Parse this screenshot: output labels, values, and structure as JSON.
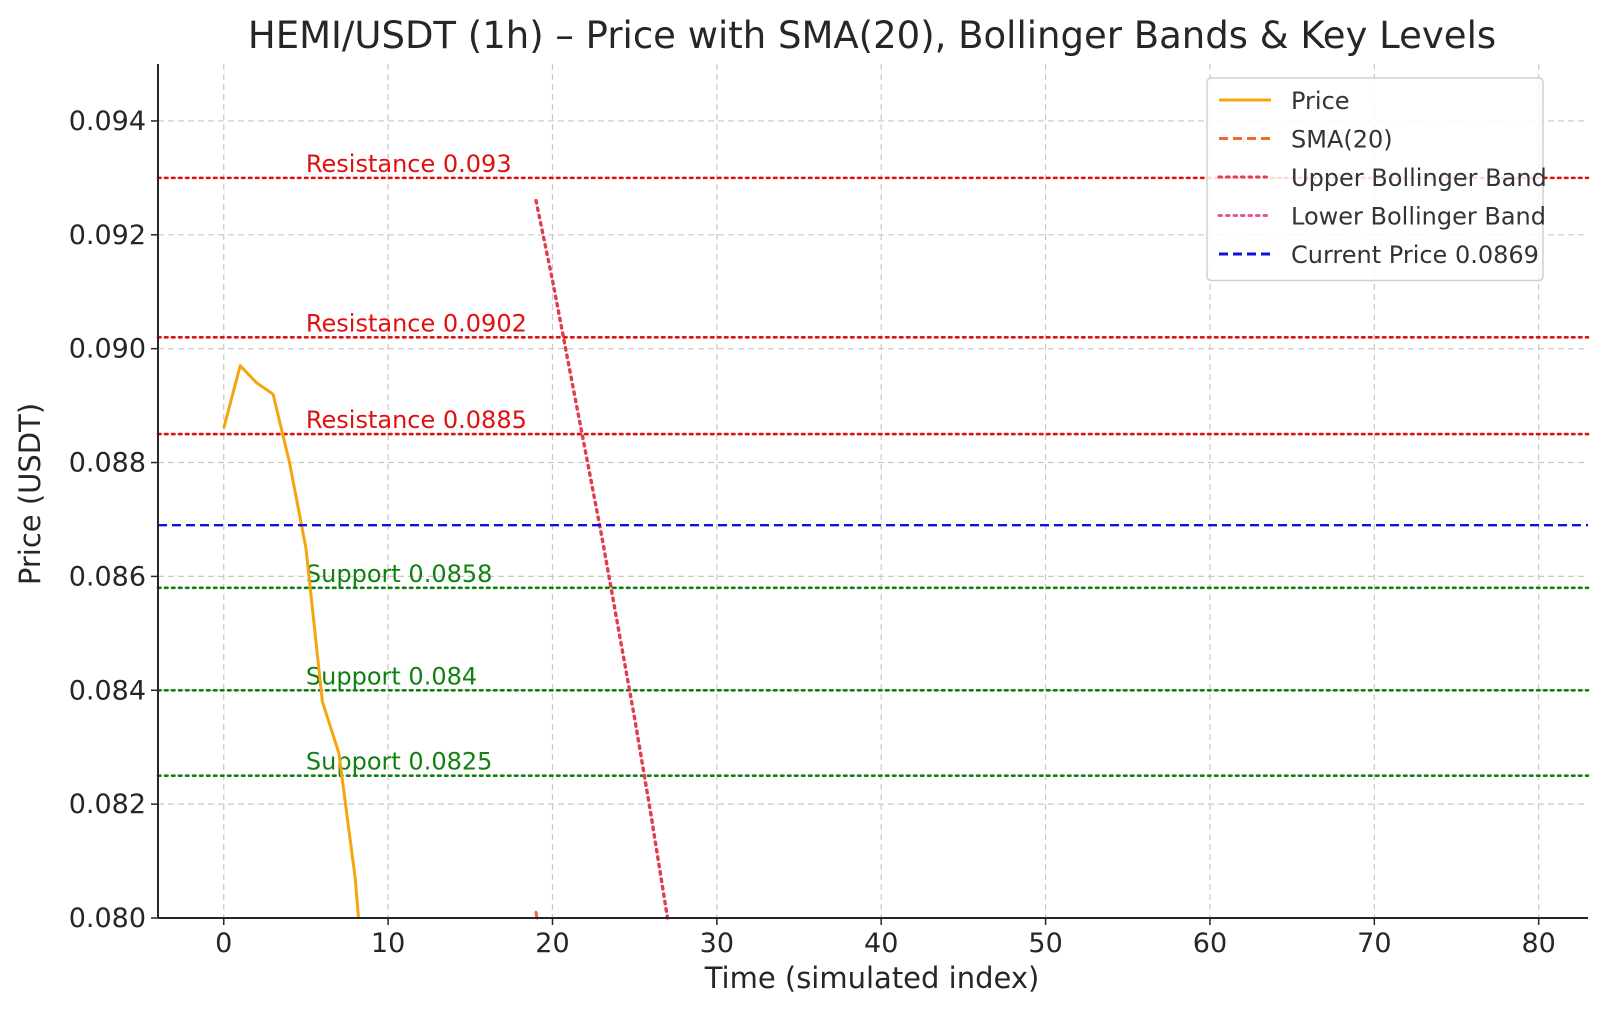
{
  "colors": {
    "price": "#f5a50e",
    "sma": "#ee6a2e",
    "upper_band": "#e23e4a",
    "lower_band": "#e8559a",
    "current": "#1010d8",
    "resistance": "#e01010",
    "support": "#108010",
    "grid": "#c8c8c8",
    "axis": "#262626"
  },
  "chart_data": {
    "type": "line",
    "title": "HEMI/USDT (1h) – Price with SMA(20), Bollinger Bands & Key Levels",
    "xlabel": "Time (simulated index)",
    "ylabel": "Price (USDT)",
    "xlim": [
      -4,
      83
    ],
    "ylim": [
      0.08,
      0.095
    ],
    "xticks": [
      0,
      10,
      20,
      30,
      40,
      50,
      60,
      70,
      80
    ],
    "xtick_labels": [
      "0",
      "10",
      "20",
      "30",
      "40",
      "50",
      "60",
      "70",
      "80"
    ],
    "yticks": [
      0.08,
      0.082,
      0.084,
      0.086,
      0.088,
      0.09,
      0.092,
      0.094
    ],
    "ytick_labels": [
      "0.080",
      "0.082",
      "0.084",
      "0.086",
      "0.088",
      "0.090",
      "0.092",
      "0.094"
    ],
    "grid": true,
    "legend_position": "top-right",
    "series": [
      {
        "name": "Price",
        "style": "solid",
        "x": [
          0,
          1,
          2,
          3,
          4,
          5,
          6,
          7,
          8,
          8.2
        ],
        "y": [
          0.0886,
          0.0897,
          0.0894,
          0.0892,
          0.088,
          0.0865,
          0.0838,
          0.0829,
          0.0807,
          0.08
        ]
      },
      {
        "name": "SMA(20)",
        "style": "dashed",
        "x": [
          19,
          19.05
        ],
        "y": [
          0.0801,
          0.08
        ]
      },
      {
        "name": "Upper Bollinger Band",
        "style": "dotted",
        "x": [
          19,
          20,
          21,
          22,
          23,
          24,
          25,
          26,
          27
        ],
        "y": [
          0.0926,
          0.0912,
          0.0897,
          0.0882,
          0.0867,
          0.0851,
          0.0835,
          0.0818,
          0.08
        ]
      },
      {
        "name": "Lower Bollinger Band",
        "style": "dotted",
        "x": [],
        "y": []
      },
      {
        "name": "Current Price 0.0869",
        "style": "dashed",
        "y": 0.0869
      }
    ],
    "levels": [
      {
        "label": "Resistance 0.093",
        "value": 0.093,
        "kind": "resistance"
      },
      {
        "label": "Resistance 0.0902",
        "value": 0.0902,
        "kind": "resistance"
      },
      {
        "label": "Resistance 0.0885",
        "value": 0.0885,
        "kind": "resistance"
      },
      {
        "label": "Support 0.0858",
        "value": 0.0858,
        "kind": "support"
      },
      {
        "label": "Support 0.084",
        "value": 0.084,
        "kind": "support"
      },
      {
        "label": "Support 0.0825",
        "value": 0.0825,
        "kind": "support"
      }
    ],
    "level_label_x": 5
  }
}
